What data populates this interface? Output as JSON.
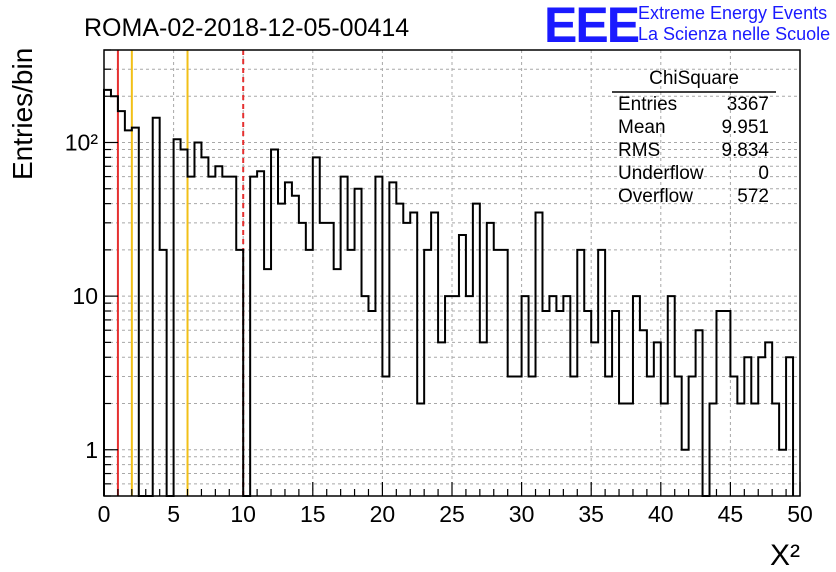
{
  "header": {
    "title": "ROMA-02-2018-12-05-00414",
    "logo_letters": "EEE",
    "logo_line1": "Extreme Energy Events",
    "logo_line2": "La Scienza nelle Scuole"
  },
  "stats_box": {
    "name": "ChiSquare",
    "rows": [
      {
        "label": "Entries",
        "value": "3367"
      },
      {
        "label": "Mean",
        "value": "9.951"
      },
      {
        "label": "RMS",
        "value": "9.834"
      },
      {
        "label": "Underflow",
        "value": "0"
      },
      {
        "label": "Overflow",
        "value": "572"
      }
    ]
  },
  "chart_data": {
    "type": "histogram",
    "title": "ROMA-02-2018-12-05-00414",
    "xlabel": "X²",
    "ylabel": "Entries/bin",
    "xlim": [
      0,
      50
    ],
    "ylim": [
      0.5,
      400
    ],
    "yscale": "log",
    "grid": true,
    "bin_width": 0.5,
    "x_ticks": [
      "0",
      "5",
      "10",
      "15",
      "20",
      "25",
      "30",
      "35",
      "40",
      "45",
      "50"
    ],
    "y_ticks": [
      {
        "value": 1,
        "label": "1"
      },
      {
        "value": 10,
        "label": "10"
      },
      {
        "value": 100,
        "label": "10²"
      }
    ],
    "bin_counts": [
      220,
      200,
      160,
      120,
      125,
      0,
      0,
      145,
      20,
      0,
      105,
      90,
      60,
      100,
      80,
      60,
      70,
      60,
      60,
      20,
      0,
      60,
      65,
      15,
      90,
      40,
      55,
      45,
      30,
      20,
      80,
      30,
      30,
      15,
      60,
      20,
      50,
      10,
      8,
      60,
      3,
      55,
      40,
      30,
      35,
      2,
      20,
      35,
      5,
      10,
      10,
      25,
      10,
      40,
      5,
      30,
      20,
      20,
      3,
      3,
      10,
      3,
      35,
      8,
      10,
      8,
      10,
      3,
      20,
      8,
      5,
      20,
      3,
      8,
      2,
      2,
      10,
      6,
      3,
      5,
      2,
      10,
      3,
      1,
      3,
      6,
      0,
      2,
      8,
      8,
      3,
      2,
      4,
      2,
      4,
      5,
      2,
      1,
      4
    ],
    "series": [
      {
        "name": "ChiSquare",
        "values_ref": "bin_counts"
      }
    ],
    "vertical_lines": [
      {
        "x": 1,
        "color": "#e53030",
        "style": "solid"
      },
      {
        "x": 2,
        "color": "#f2c017",
        "style": "solid"
      },
      {
        "x": 6,
        "color": "#f2c017",
        "style": "solid"
      },
      {
        "x": 10,
        "color": "#e53030",
        "style": "dashed"
      }
    ]
  }
}
